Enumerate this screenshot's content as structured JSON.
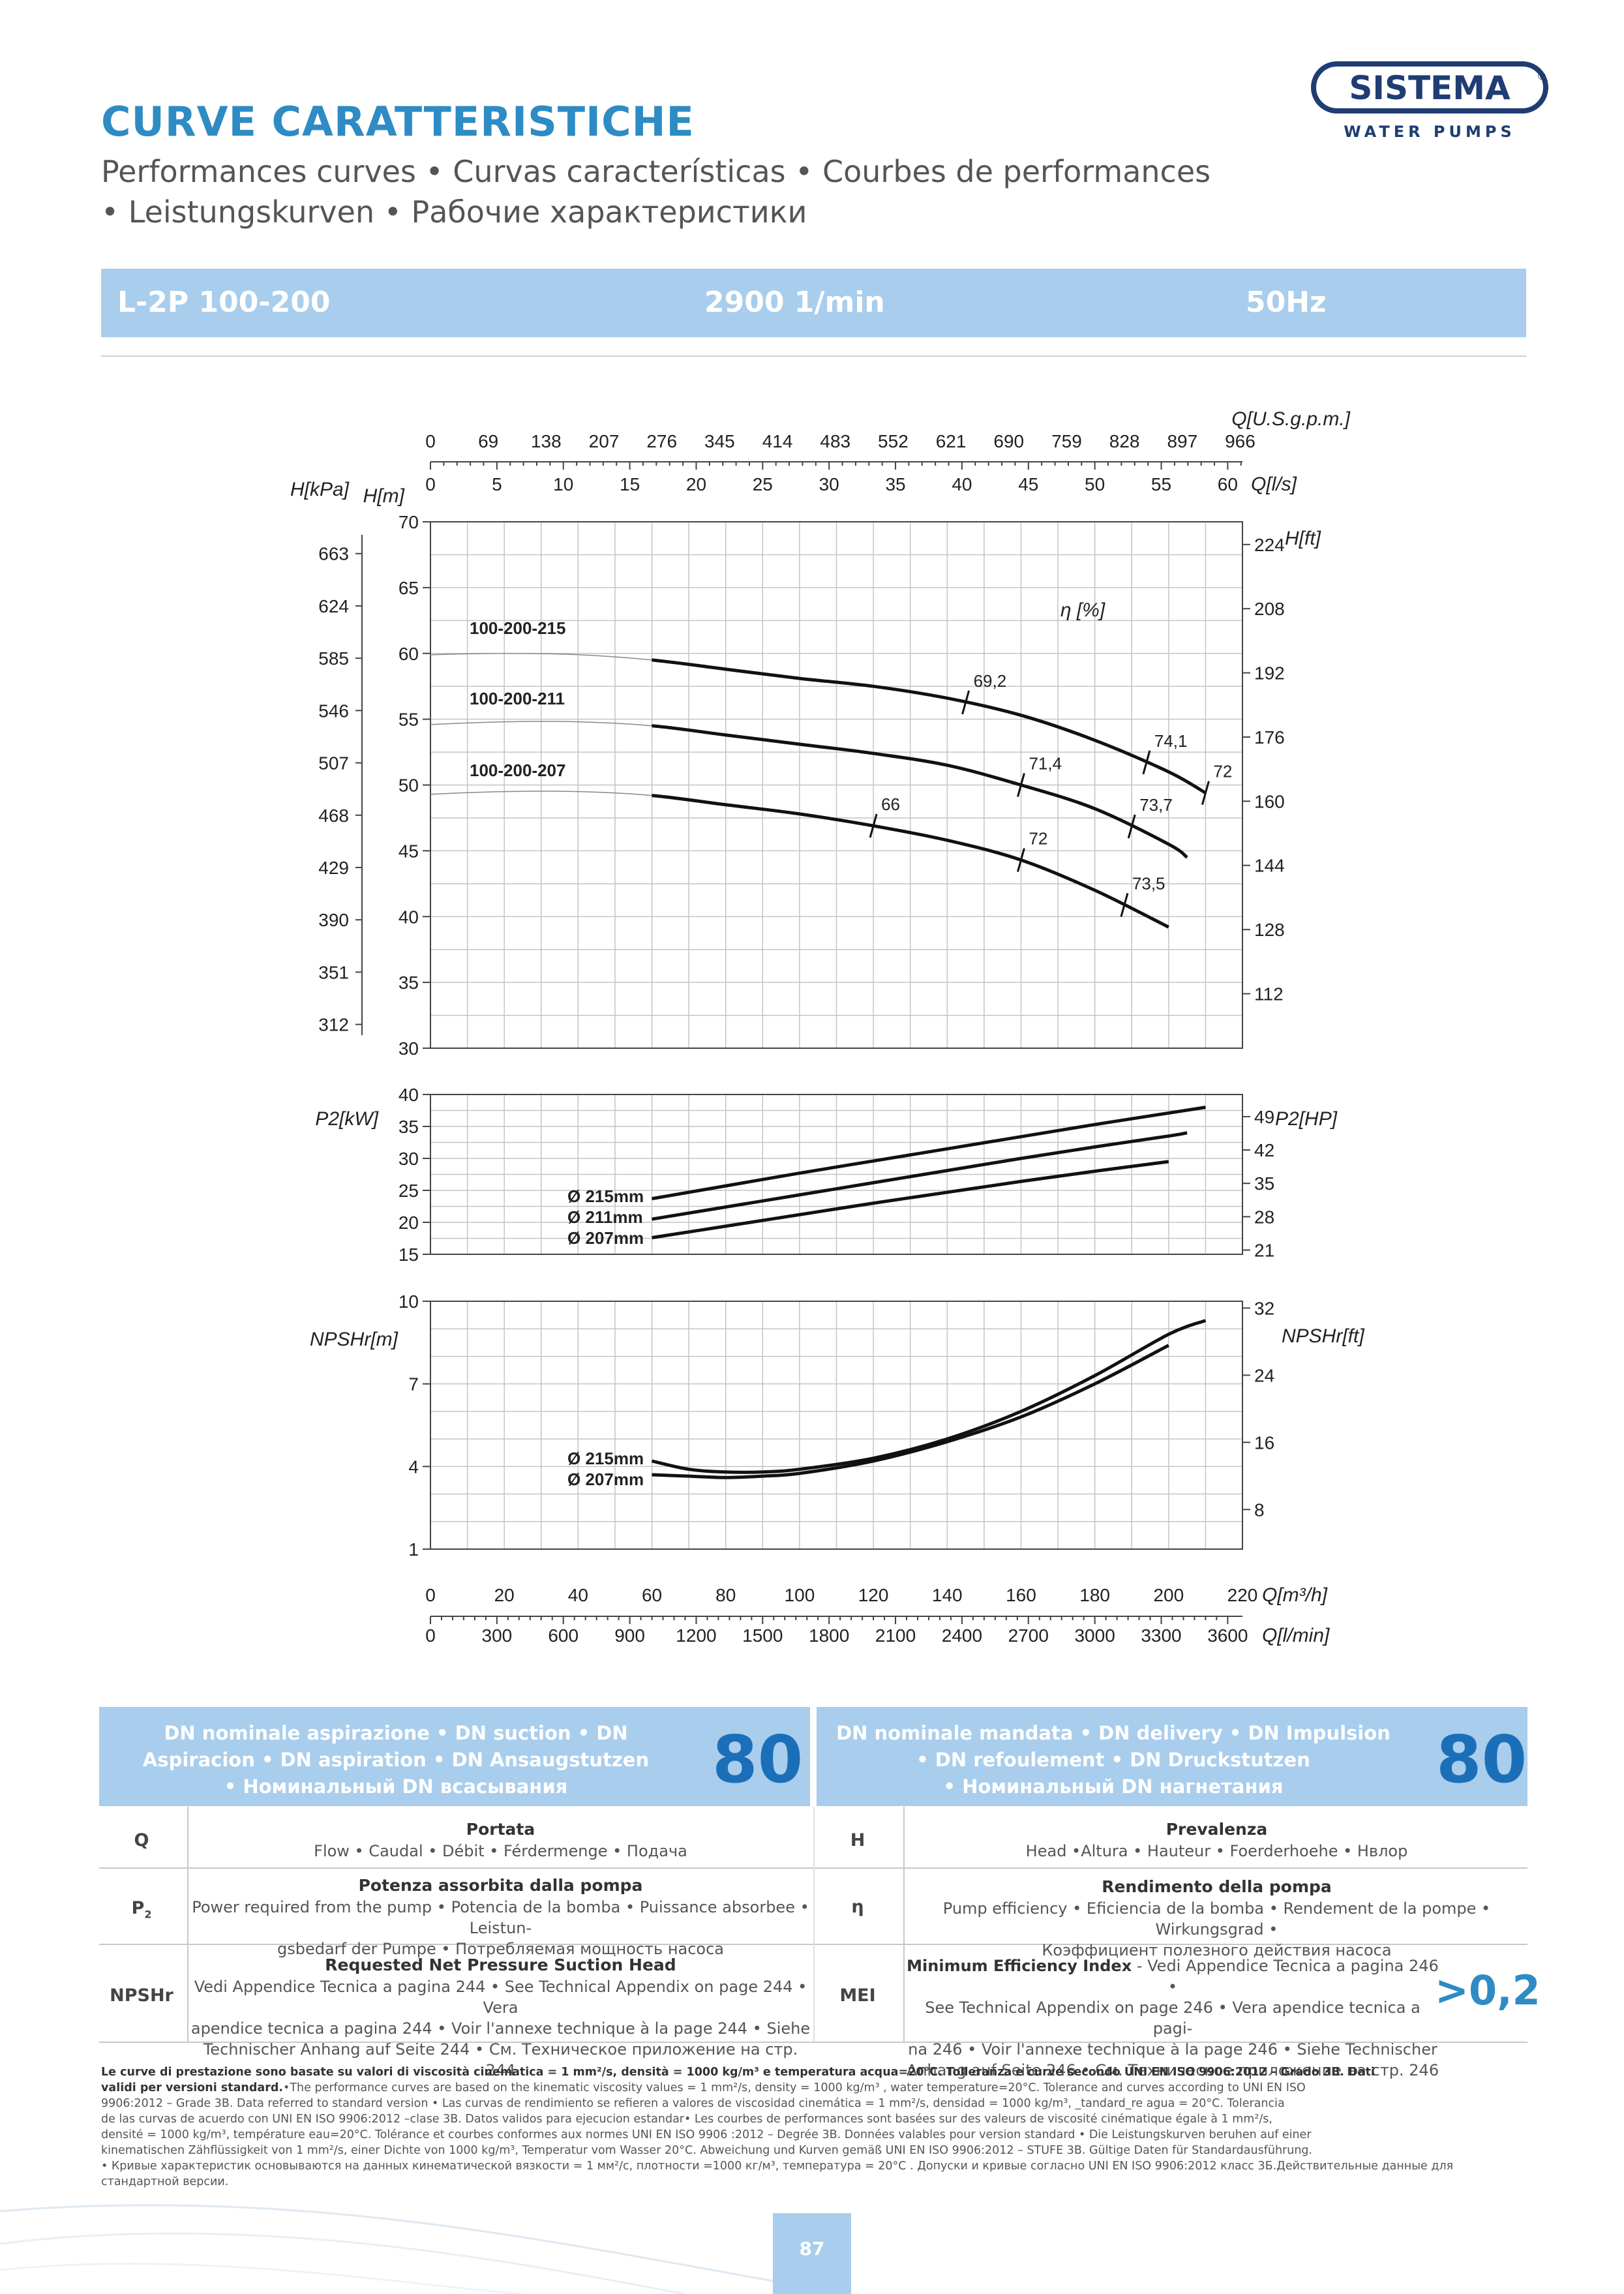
{
  "header": {
    "title": "CURVE CARATTERISTICHE",
    "subtitle_line1": "Performances curves • Curvas características • Courbes de performances",
    "subtitle_line2": "• Leistungskurven • Рабочие характеристики",
    "logo_text": "SISTEMA",
    "logo_reg": "®",
    "logo_subtext": "WATER PUMPS",
    "brand_color": "#2e8bc4",
    "banner_color": "#a9cdec"
  },
  "banner": {
    "model": "L-2P 100-200",
    "speed": "2900 1/min",
    "frequency": "50Hz"
  },
  "chart_data": {
    "type": "line",
    "shared_x": {
      "label_m3h": "Q[m³/h]",
      "label_lmin": "Q[l/min]",
      "label_ls": "Q[l/s]",
      "label_usgpm": "Q[U.S.g.p.m.]",
      "ticks_m3h": [
        "0",
        "20",
        "40",
        "60",
        "80",
        "100",
        "120",
        "140",
        "160",
        "180",
        "200",
        "220"
      ],
      "ticks_lmin": [
        "0",
        "300",
        "600",
        "900",
        "1200",
        "1500",
        "1800",
        "2100",
        "2400",
        "2700",
        "3000",
        "3300",
        "3600"
      ],
      "ticks_ls": [
        "0",
        "5",
        "10",
        "15",
        "20",
        "25",
        "30",
        "35",
        "40",
        "45",
        "50",
        "55",
        "60"
      ],
      "ticks_usgpm": [
        "0",
        "69",
        "138",
        "207",
        "276",
        "345",
        "414",
        "483",
        "552",
        "621",
        "690",
        "759",
        "828",
        "897",
        "966"
      ],
      "xlim": [
        0,
        220
      ]
    },
    "panels": [
      {
        "name": "head",
        "ylabel_left": "H[m]",
        "ylabel_left2": "H[kPa]",
        "ylabel_right": "H[ft]",
        "ylim": [
          30,
          70
        ],
        "ticks_left": [
          "30",
          "35",
          "40",
          "45",
          "50",
          "55",
          "60",
          "65",
          "70"
        ],
        "ticks_kpa": [
          "312",
          "351",
          "390",
          "429",
          "468",
          "507",
          "546",
          "585",
          "624",
          "663"
        ],
        "ticks_ft": [
          "112",
          "128",
          "144",
          "160",
          "176",
          "192",
          "208",
          "224"
        ],
        "eta_label": "η [%]",
        "series": [
          {
            "name": "100-200-215",
            "x": [
              0,
              20,
              40,
              60,
              80,
              100,
              120,
              140,
              160,
              180,
              200,
              210
            ],
            "y": [
              59.9,
              60.0,
              59.9,
              59.5,
              58.8,
              58.1,
              57.5,
              56.6,
              55.3,
              53.4,
              51.0,
              49.4
            ]
          },
          {
            "name": "100-200-211",
            "x": [
              0,
              20,
              40,
              60,
              80,
              100,
              120,
              140,
              160,
              180,
              200,
              205
            ],
            "y": [
              54.6,
              54.8,
              54.8,
              54.5,
              53.8,
              53.1,
              52.4,
              51.5,
              50.0,
              48.2,
              45.5,
              44.5
            ]
          },
          {
            "name": "100-200-207",
            "x": [
              0,
              20,
              40,
              60,
              80,
              100,
              120,
              140,
              160,
              180,
              200
            ],
            "y": [
              49.3,
              49.5,
              49.5,
              49.2,
              48.5,
              47.8,
              46.9,
              45.8,
              44.3,
              42.0,
              39.2
            ]
          }
        ],
        "efficiency_marks": [
          {
            "label": "69,2",
            "x": 145,
            "curve": "100-200-215"
          },
          {
            "label": "74,1",
            "x": 194,
            "curve": "100-200-215"
          },
          {
            "label": "72",
            "x": 210,
            "curve": "100-200-215"
          },
          {
            "label": "71,4",
            "x": 160,
            "curve": "100-200-211"
          },
          {
            "label": "73,7",
            "x": 190,
            "curve": "100-200-211"
          },
          {
            "label": "66",
            "x": 120,
            "curve": "100-200-207"
          },
          {
            "label": "72",
            "x": 160,
            "curve": "100-200-207"
          },
          {
            "label": "73,5",
            "x": 188,
            "curve": "100-200-207"
          }
        ]
      },
      {
        "name": "power",
        "ylabel_left": "P2[kW]",
        "ylabel_right": "P2[HP]",
        "ylim": [
          15,
          40
        ],
        "ticks_left": [
          "15",
          "20",
          "25",
          "30",
          "35",
          "40"
        ],
        "ticks_right": [
          "21",
          "28",
          "35",
          "42",
          "49"
        ],
        "series": [
          {
            "name": "Ø 215mm",
            "x": [
              60,
              80,
              100,
              120,
              140,
              160,
              180,
              200,
              210
            ],
            "y": [
              23.7,
              25.7,
              27.7,
              29.6,
              31.5,
              33.4,
              35.3,
              37.1,
              38.0
            ]
          },
          {
            "name": "Ø 211mm",
            "x": [
              60,
              80,
              100,
              120,
              140,
              160,
              180,
              200,
              205
            ],
            "y": [
              20.5,
              22.4,
              24.3,
              26.2,
              28.1,
              30.0,
              31.8,
              33.5,
              34.0
            ]
          },
          {
            "name": "Ø 207mm",
            "x": [
              60,
              80,
              100,
              120,
              140,
              160,
              180,
              200
            ],
            "y": [
              17.6,
              19.4,
              21.2,
              23.0,
              24.7,
              26.4,
              28.0,
              29.5
            ]
          }
        ]
      },
      {
        "name": "npshr",
        "ylabel_left": "NPSHr[m]",
        "ylabel_right": "NPSHr[ft]",
        "ylim": [
          1,
          10
        ],
        "ticks_left": [
          "1",
          "4",
          "7",
          "10"
        ],
        "ticks_right": [
          "8",
          "16",
          "24",
          "32"
        ],
        "series": [
          {
            "name": "Ø 215mm",
            "x": [
              60,
              70,
              80,
              90,
              100,
              120,
              140,
              160,
              180,
              200,
              210
            ],
            "y": [
              4.2,
              3.9,
              3.8,
              3.8,
              3.9,
              4.3,
              5.0,
              6.0,
              7.3,
              8.8,
              9.3
            ]
          },
          {
            "name": "Ø 207mm",
            "x": [
              60,
              70,
              80,
              90,
              100,
              120,
              140,
              160,
              180,
              200
            ],
            "y": [
              3.7,
              3.65,
              3.6,
              3.65,
              3.75,
              4.2,
              4.9,
              5.8,
              7.0,
              8.4
            ]
          }
        ]
      }
    ]
  },
  "dn_suction": {
    "label": "DN nominale aspirazione • DN suction • DN Aspiracion • DN aspiration • DN Ansaugstutzen • Номинальный DN всасывания",
    "label_l1": "DN nominale aspirazione • DN suction • DN",
    "label_l2": "Aspiracion • DN aspiration • DN Ansaugstutzen",
    "label_l3": "• Номинальный DN всасывания",
    "value": "80"
  },
  "dn_delivery": {
    "label_l1": "DN nominale mandata • DN delivery • DN Impulsion",
    "label_l2": "• DN refoulement • DN Druckstutzen",
    "label_l3": "• Номинальный DN нагнетания",
    "value": "80"
  },
  "legend_table": {
    "q_sym": "Q",
    "q_title": "Portata",
    "q_desc": "Flow • Caudal • Débit • Férdermenge • Подача",
    "h_sym": "H",
    "h_title": "Prevalenza",
    "h_desc": "Head •Altura • Hauteur • Foerderhoehe • Нвлор",
    "p2_sym": "P",
    "p2_sub": "2",
    "p2_title": "Potenza assorbita dalla pompa",
    "p2_desc_l1": "Power required from the pump • Potencia de la bomba • Puissance absorbee • Leistun-",
    "p2_desc_l2": "gsbedarf der Pumpe • Потребляемая мощность насоса",
    "eta_sym": "η",
    "eta_title": "Rendimento della pompa",
    "eta_desc_l1": "Pump efficiency • Eficiencia de la bomba • Rendement de la pompe • Wirkungsgrad •",
    "eta_desc_l2": "Коэффициент полезного действия насоса",
    "npshr_sym": "NPSHr",
    "npshr_title": "Requested Net Pressure Suction Head",
    "npshr_desc_l1": "Vedi Appendice Tecnica a pagina 244 • See Technical Appendix on page 244 • Vera",
    "npshr_desc_l2": "apendice tecnica a pagina  244 • Voir l'annexe technique à la page  244 • Siehe",
    "npshr_desc_l3": "Technischer Anhang auf Seite  244 • См. Техническое приложение на стр. 244",
    "mei_sym": "MEI",
    "mei_title": "Minimum Efficiency Index",
    "mei_title_rest": " - Vedi Appendice Tecnica a pagina 246 •",
    "mei_desc_l2": "See Technical Appendix on page 246 • Vera apendice tecnica a pagi-",
    "mei_desc_l3": "na 246 • Voir l'annexe technique à la page 246 • Siehe Technischer",
    "mei_desc_l4": "Anhang auf Seite 246 • См. Техническое приложение на стр. 246",
    "mei_value": ">0,2"
  },
  "footnote": {
    "bold_l1": "Le curve di prestazione sono basate su valori di viscosità cinematica = 1 mm²/s,  densità = 1000 kg/m³ e temperatura acqua=20°C. Tolleranza e curve secondo UNI EN ISO 9906:2012 – Grado 3B. Dati",
    "bold_l2": "validi per versioni standard.",
    "text_l2": "•The performance curves are based on the kinematic viscosity values = 1 mm²/s, density = 1000 kg/m³ , water temperature=20°C. Tolerance and curves according to UNI EN ISO",
    "text_l3": "9906:2012 – Grade 3B. Data referred to standard version • Las curvas de rendimiento se refieren a valores de viscosidad cinemática = 1 mm²/s,  densidad = 1000 kg/m³, _tandard_re agua = 20°C. Tolerancia",
    "text_l4": "de las curvas de acuerdo con UNI EN ISO 9906:2012 –clase 3B. Datos validos para ejecucion estandar• Les courbes de performances sont basées sur des valeurs de viscosité cinématique égale à 1 mm²/s,",
    "text_l5": "densité = 1000 kg/m³, température eau=20°C. Tolérance et courbes conformes aux normes UNI EN ISO 9906 :2012 – Degrée 3B. Données valables pour version standard • Die Leistungskurven beruhen auf einer",
    "text_l6": "kinematischen Zähflüssigkeit von 1 mm²/s, einer Dichte von 1000 kg/m³, Temperatur vom Wasser 20°C. Abweichung und Kurven gemäß UNI EN ISO 9906:2012 – STUFE 3B. Gültige Daten für Standardausführung.",
    "text_l7": "•  Кривые характеристик основываются на данных кинематической вязкости = 1 мм²/с, плотности =1000 кг/м³, температура = 20°C . Допуски и кривые согласно UNI EN ISO 9906:2012 класс 3Б.Действительные данные для",
    "text_l8": "стандартной версии."
  },
  "page_number": "87"
}
